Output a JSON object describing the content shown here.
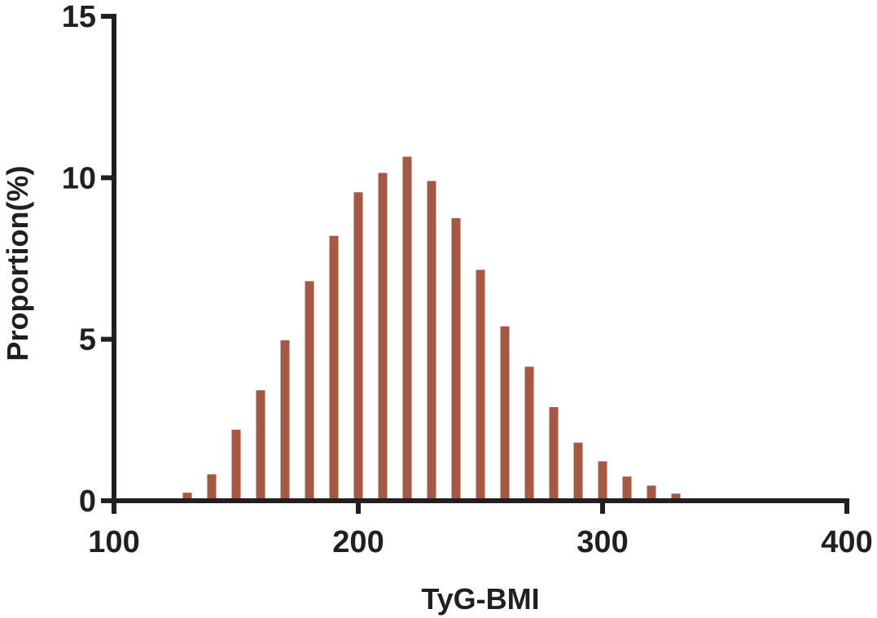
{
  "chart_data": {
    "type": "bar",
    "title": "",
    "xlabel": "TyG-BMI",
    "ylabel": "Proportion(%)",
    "xlim": [
      100,
      400
    ],
    "ylim": [
      0,
      15
    ],
    "x_ticks": [
      100,
      200,
      300,
      400
    ],
    "y_ticks": [
      0,
      5,
      10,
      15
    ],
    "x_tick_labels": [
      "100",
      "200",
      "300",
      "400"
    ],
    "y_tick_labels": [
      "0",
      "5",
      "10",
      "15"
    ],
    "grid": false,
    "bar_color": "#a65843",
    "axis_color": "#231f20",
    "x": [
      120,
      130,
      140,
      150,
      160,
      170,
      180,
      190,
      200,
      210,
      220,
      230,
      240,
      250,
      260,
      270,
      280,
      290,
      300,
      310,
      320,
      330
    ],
    "values": [
      0.03,
      0.25,
      0.82,
      2.2,
      3.42,
      4.97,
      6.8,
      8.2,
      9.55,
      10.15,
      10.65,
      9.9,
      8.75,
      7.15,
      5.4,
      4.15,
      2.9,
      1.8,
      1.22,
      0.75,
      0.47,
      0.22
    ]
  }
}
